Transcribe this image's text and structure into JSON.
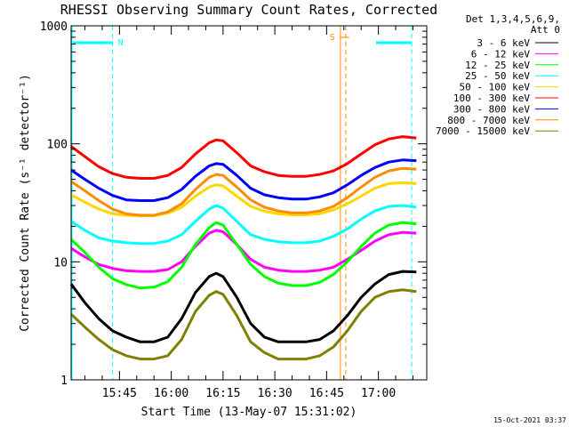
{
  "chart_data": {
    "type": "line",
    "title": "RHESSI Observing Summary Count Rates, Corrected",
    "xlabel": "Start Time (13-May-07 15:31:02)",
    "ylabel": "Corrected Count Rate (s⁻¹ detector⁻¹)",
    "yscale": "log",
    "ylim": [
      1,
      1000
    ],
    "xlim": [
      "15:31",
      "17:14"
    ],
    "x_ticks": [
      "15:45",
      "16:00",
      "16:15",
      "16:30",
      "16:45",
      "17:00"
    ],
    "y_ticks": [
      "1",
      "10",
      "100",
      "1000"
    ],
    "grid": false,
    "legend_position": "right",
    "legend_header": [
      "Det 1,3,4,5,6,9,",
      "Att 0"
    ],
    "x": [
      "15:31",
      "15:35",
      "15:39",
      "15:43",
      "15:47",
      "15:51",
      "15:55",
      "15:59",
      "16:03",
      "16:07",
      "16:11",
      "16:13",
      "16:15",
      "16:19",
      "16:23",
      "16:27",
      "16:31",
      "16:35",
      "16:39",
      "16:43",
      "16:47",
      "16:51",
      "16:55",
      "16:59",
      "17:03",
      "17:07",
      "17:11"
    ],
    "series": [
      {
        "name": "3 - 6 keV",
        "color": "#000000",
        "values": [
          6.5,
          4.5,
          3.3,
          2.6,
          2.3,
          2.1,
          2.1,
          2.3,
          3.3,
          5.5,
          7.5,
          8.0,
          7.5,
          5.0,
          3.0,
          2.3,
          2.1,
          2.1,
          2.1,
          2.2,
          2.6,
          3.5,
          5.0,
          6.5,
          7.8,
          8.3,
          8.2
        ]
      },
      {
        "name": "6 - 12 keV",
        "color": "#ff00ff",
        "values": [
          13.0,
          11.0,
          9.5,
          8.8,
          8.4,
          8.3,
          8.3,
          8.6,
          10.0,
          13.5,
          17.5,
          18.5,
          18.0,
          14.0,
          10.5,
          9.0,
          8.5,
          8.3,
          8.3,
          8.5,
          9.0,
          10.5,
          12.5,
          15.0,
          17.0,
          17.8,
          17.5
        ]
      },
      {
        "name": "12 - 25 keV",
        "color": "#00ff00",
        "values": [
          15.5,
          12.0,
          9.0,
          7.2,
          6.4,
          6.0,
          6.1,
          6.8,
          9.0,
          14.0,
          19.5,
          21.5,
          20.5,
          14.0,
          9.5,
          7.5,
          6.6,
          6.3,
          6.3,
          6.7,
          7.8,
          10.0,
          13.5,
          17.5,
          20.5,
          21.5,
          21.0
        ]
      },
      {
        "name": "25 - 50 keV",
        "color": "#00ffff",
        "values": [
          22.0,
          18.5,
          16.0,
          15.0,
          14.5,
          14.3,
          14.3,
          15.0,
          17.0,
          22.0,
          28.0,
          30.0,
          28.5,
          22.0,
          17.0,
          15.5,
          14.8,
          14.5,
          14.5,
          15.0,
          16.5,
          19.0,
          23.0,
          27.0,
          29.5,
          30.0,
          29.0
        ]
      },
      {
        "name": "50 - 100 keV",
        "color": "#ffd700",
        "values": [
          37.0,
          32.0,
          28.0,
          25.5,
          24.8,
          24.5,
          24.6,
          25.8,
          29.0,
          36.0,
          43.0,
          45.0,
          44.0,
          36.0,
          29.5,
          26.8,
          25.5,
          25.0,
          25.0,
          25.6,
          27.5,
          31.0,
          36.0,
          42.0,
          46.0,
          47.0,
          46.0
        ]
      },
      {
        "name": "100 - 300 keV",
        "color": "#ff0000",
        "values": [
          95.0,
          78.0,
          64.0,
          56.0,
          52.0,
          51.0,
          51.0,
          54.0,
          63.0,
          82.0,
          102.0,
          108.0,
          106.0,
          84.0,
          65.0,
          58.0,
          54.0,
          53.0,
          53.0,
          55.0,
          59.0,
          68.0,
          82.0,
          98.0,
          110.0,
          115.0,
          112.0
        ]
      },
      {
        "name": "300 - 800 keV",
        "color": "#0000ff",
        "values": [
          60.0,
          50.0,
          42.0,
          36.5,
          33.5,
          33.0,
          33.0,
          35.0,
          41.0,
          53.0,
          65.0,
          68.0,
          67.0,
          54.0,
          42.0,
          37.0,
          35.0,
          34.0,
          34.0,
          35.5,
          38.5,
          45.0,
          54.0,
          63.0,
          70.0,
          73.0,
          72.0
        ]
      },
      {
        "name": "800 - 7000 keV",
        "color": "#ff8c00",
        "values": [
          48.0,
          40.0,
          33.0,
          28.0,
          25.5,
          24.8,
          24.8,
          26.5,
          31.0,
          41.0,
          52.0,
          55.0,
          54.0,
          43.0,
          33.5,
          29.0,
          27.0,
          26.0,
          26.0,
          27.0,
          29.5,
          35.0,
          43.0,
          52.0,
          59.0,
          62.0,
          61.0
        ]
      },
      {
        "name": "7000 - 15000 keV",
        "color": "#808000",
        "values": [
          3.6,
          2.8,
          2.2,
          1.8,
          1.6,
          1.5,
          1.5,
          1.6,
          2.2,
          3.8,
          5.2,
          5.6,
          5.3,
          3.5,
          2.1,
          1.7,
          1.5,
          1.5,
          1.5,
          1.6,
          1.9,
          2.6,
          3.8,
          5.0,
          5.6,
          5.8,
          5.6
        ]
      }
    ],
    "markers": [
      {
        "label": "N",
        "color": "#00ffff",
        "x": "15:43"
      },
      {
        "label": "S",
        "color": "#ff8c00",
        "x": "16:49"
      }
    ],
    "timestamp": "15-Oct-2021 03:37"
  }
}
